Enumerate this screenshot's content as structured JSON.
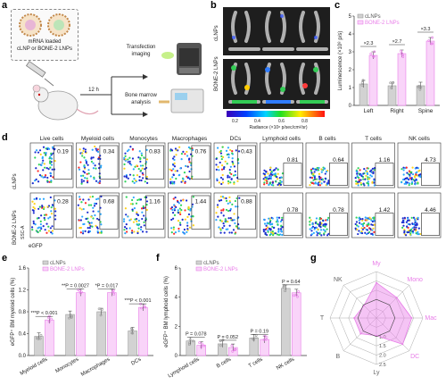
{
  "panels": {
    "a": "a",
    "b": "b",
    "c": "c",
    "d": "d",
    "e": "e",
    "f": "f",
    "g": "g"
  },
  "panel_a": {
    "box_text_line1": "mRNA loaded",
    "box_text_line2": "cLNP or BONE-2 LNPs",
    "time_label": "12 h",
    "step1_line1": "Transfection",
    "step1_line2": "imaging",
    "step2_line1": "Bone marrow",
    "step2_line2": "analysis"
  },
  "panel_b": {
    "row_labels": [
      "cLNPs",
      "BONE-2 LNPs"
    ],
    "colorbar_ticks": [
      "0.2",
      "0.4",
      "0.6",
      "0.8"
    ],
    "colorbar_label": "Radiance (×10⁸ p/sec/cm²/sr)"
  },
  "panel_d": {
    "columns": [
      "Live cells",
      "Myeloid cells",
      "Monocytes",
      "Macrophages",
      "DCs",
      "Lymphoid cells",
      "B cells",
      "T cells",
      "NK cells"
    ],
    "row_labels": [
      "cLNPs",
      "BONE-2 LNPs"
    ],
    "clnp_values": [
      "0.19",
      "0.34",
      "0.83",
      "0.76",
      "0.43",
      "0.81",
      "0.64",
      "1.16",
      "4.73"
    ],
    "bone_values": [
      "0.28",
      "0.68",
      "1.16",
      "1.44",
      "0.88",
      "0.78",
      "0.78",
      "1.42",
      "4.46"
    ],
    "y_axis": "SSC-A",
    "x_axis": "eGFP"
  },
  "colors": {
    "clnp": "#9a9a9a",
    "bone": "#e87de8",
    "bone_fill": "#f9d4f9",
    "clnp_fill": "#d2d2d2"
  },
  "chart_data": [
    {
      "id": "c",
      "type": "bar",
      "categories": [
        "Left",
        "Right",
        "Spine"
      ],
      "series": [
        {
          "name": "cLNPs",
          "values": [
            1.2,
            1.1,
            1.1
          ]
        },
        {
          "name": "BONE-2 LNPs",
          "values": [
            2.8,
            2.9,
            3.6
          ]
        }
      ],
      "annotations": [
        "×2.3",
        "×2.7",
        "×3.3"
      ],
      "ylabel": "Luminescence (×10⁸ p/s)",
      "ylim": [
        0,
        5
      ],
      "yticks": [
        "0",
        "1",
        "2",
        "3",
        "4",
        "5"
      ],
      "legend": "top-left"
    },
    {
      "id": "e",
      "type": "bar",
      "categories": [
        "Myeloid cells",
        "Monocytes",
        "Macrophages",
        "DCs"
      ],
      "series": [
        {
          "name": "cLNPs",
          "values": [
            0.35,
            0.75,
            0.8,
            0.45
          ]
        },
        {
          "name": "BONE-2 LNPs",
          "values": [
            0.65,
            1.15,
            1.15,
            0.88
          ]
        }
      ],
      "annotations": [
        "***P < 0.001",
        "**P = 0.0027",
        "*P = 0.017",
        "***P < 0.001"
      ],
      "ylabel": "eGFP⁺ BM myeloid cells (%)",
      "ylim": [
        0,
        1.6
      ],
      "yticks": [
        "0.0",
        "0.4",
        "0.8",
        "1.2",
        "1.6"
      ],
      "legend": "top"
    },
    {
      "id": "f",
      "type": "bar",
      "categories": [
        "Lymphoid cells",
        "B cells",
        "T cells",
        "NK cells"
      ],
      "series": [
        {
          "name": "cLNPs",
          "values": [
            1.0,
            0.8,
            1.2,
            4.6
          ]
        },
        {
          "name": "BONE-2 LNPs",
          "values": [
            0.7,
            0.55,
            1.1,
            4.3
          ]
        }
      ],
      "annotations": [
        "P = 0.078",
        "P = 0.052",
        "P = 0.19",
        "P = 0.64"
      ],
      "ylabel": "eGFP⁺ BM lymphoid cells (%)",
      "ylim": [
        0,
        6
      ],
      "yticks": [
        "0",
        "2",
        "4",
        "6"
      ],
      "legend": "top"
    },
    {
      "id": "g",
      "type": "radar",
      "axes": [
        "My",
        "Mono",
        "Mac",
        "DC",
        "Ly",
        "B",
        "T",
        "NK"
      ],
      "ring_labels": [
        "1.0",
        "1.5",
        "2.0",
        "2.5"
      ],
      "values": [
        1.9,
        1.55,
        1.9,
        2.0,
        0.95,
        1.2,
        1.2,
        0.95
      ]
    }
  ]
}
